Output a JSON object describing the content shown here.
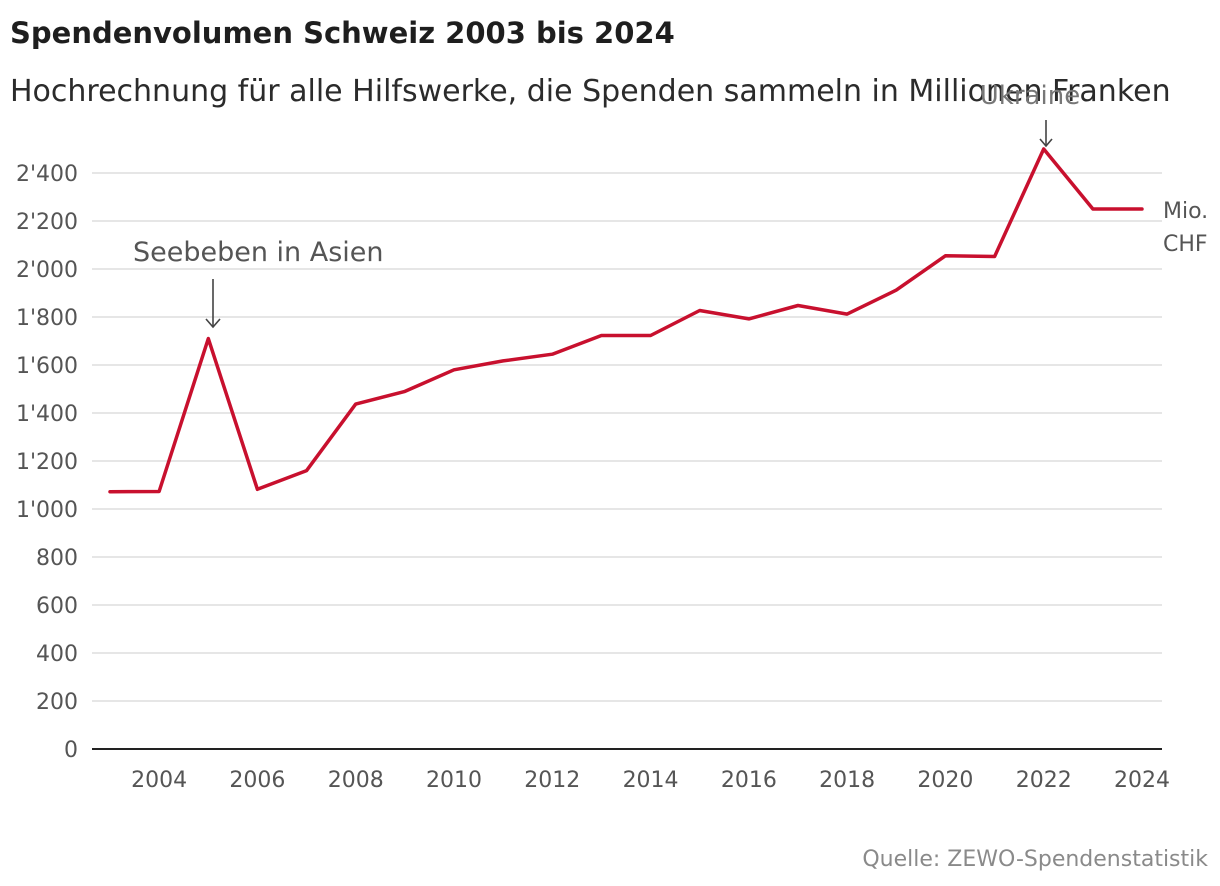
{
  "chart_data": {
    "type": "line",
    "title": "Spendenvolumen Schweiz 2003 bis 2024",
    "subtitle": "Hochrechnung für alle Hilfswerke, die Spenden sammeln in Millionen Franken",
    "unit_label": [
      "Mio.",
      "CHF"
    ],
    "source": "Quelle: ZEWO-Spendenstatistik",
    "x": [
      2003,
      2004,
      2005,
      2006,
      2007,
      2008,
      2009,
      2010,
      2011,
      2012,
      2013,
      2014,
      2015,
      2016,
      2017,
      2018,
      2019,
      2020,
      2021,
      2022,
      2023,
      2024
    ],
    "series": [
      {
        "values": [
          1072,
          1073,
          1710,
          1082,
          1160,
          1437,
          1490,
          1580,
          1617,
          1645,
          1723,
          1723,
          1827,
          1792,
          1848,
          1812,
          1912,
          2055,
          2052,
          2500,
          2250,
          2250
        ],
        "color": "#c8102e"
      }
    ],
    "x_ticks": [
      2004,
      2006,
      2008,
      2010,
      2012,
      2014,
      2016,
      2018,
      2020,
      2022,
      2024
    ],
    "y_ticks": [
      0,
      200,
      400,
      600,
      800,
      1000,
      1200,
      1400,
      1600,
      1800,
      2000,
      2200,
      2400
    ],
    "y_tick_labels": [
      "0",
      "200",
      "400",
      "600",
      "800",
      "1'000",
      "1'200",
      "1'400",
      "1'600",
      "1'800",
      "2'000",
      "2'200",
      "2'400"
    ],
    "xlim": [
      2003,
      2024
    ],
    "ylim": [
      0,
      2400
    ],
    "grid": true,
    "annotations": [
      {
        "text": "Seebeben in Asien",
        "x": 2005,
        "y": 1710
      },
      {
        "text": "Ukraine",
        "x": 2022,
        "y": 2500
      }
    ],
    "colors": {
      "line": "#c8102e",
      "grid": "#dddddd",
      "axis": "#222222"
    }
  }
}
